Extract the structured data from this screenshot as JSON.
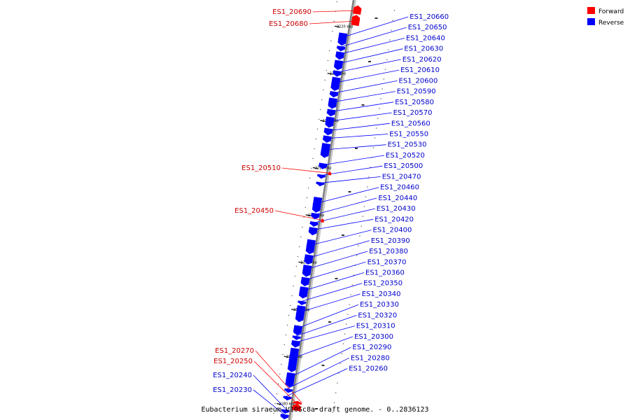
{
  "caption": "Eubacterium siraeum V10Sc8a draft genome. - 0..2836123",
  "legend": [
    {
      "label": "Forward",
      "color": "#ff0000"
    },
    {
      "label": "Reverse",
      "color": "#0000ff"
    }
  ],
  "colors": {
    "forward": "#ff0000",
    "reverse": "#0000ff",
    "forward_text": "#cc0000",
    "reverse_text": "#0000cc",
    "axis": "#808080"
  },
  "scale": {
    "kbp_top": 2223.0,
    "kbp_bottom": 2178.5,
    "unit": "kbp"
  },
  "ticks": [
    {
      "kbp": 2220,
      "label": "2220 kbp"
    },
    {
      "kbp": 2215,
      "label": "2215 kbp"
    },
    {
      "kbp": 2210,
      "label": "2210 kbp"
    },
    {
      "kbp": 2205,
      "label": "2205 kbp"
    },
    {
      "kbp": 2200,
      "label": "2200 kbp"
    },
    {
      "kbp": 2195,
      "label": "2195 kbp"
    },
    {
      "kbp": 2190,
      "label": "2190 kbp"
    },
    {
      "kbp": 2185,
      "label": "2185 kbp"
    },
    {
      "kbp": 2180,
      "label": "2180 kbp"
    }
  ],
  "forward_genes": [
    {
      "name": "ES1_20690",
      "start": 2222.5,
      "end": 2221.6
    },
    {
      "name": "ES1_20680",
      "start": 2221.5,
      "end": 2220.4
    },
    {
      "name": "ES1_20510",
      "start": 2204.9,
      "end": 2204.5
    },
    {
      "name": "ES1_20450",
      "start": 2199.9,
      "end": 2199.5
    },
    {
      "name": "ES1_20270",
      "start": 2180.6,
      "end": 2180.3
    },
    {
      "name": "ES1_20250",
      "start": 2180.3,
      "end": 2179.6
    }
  ],
  "reverse_genes": [
    {
      "name": "ES1_20660",
      "start": 2219.4,
      "end": 2218.1
    },
    {
      "name": "ES1_20650",
      "start": 2218.0,
      "end": 2217.5
    },
    {
      "name": "ES1_20640",
      "start": 2217.4,
      "end": 2216.6
    },
    {
      "name": "ES1_20630",
      "start": 2216.5,
      "end": 2215.5
    },
    {
      "name": "ES1_20620",
      "start": 2215.4,
      "end": 2214.8
    },
    {
      "name": "ES1_20610",
      "start": 2214.7,
      "end": 2213.3
    },
    {
      "name": "ES1_20600",
      "start": 2213.2,
      "end": 2212.6
    },
    {
      "name": "ES1_20590",
      "start": 2212.5,
      "end": 2211.4
    },
    {
      "name": "ES1_20580",
      "start": 2211.3,
      "end": 2210.6
    },
    {
      "name": "ES1_20570",
      "start": 2210.5,
      "end": 2209.4
    },
    {
      "name": "ES1_20560",
      "start": 2209.3,
      "end": 2208.6
    },
    {
      "name": "ES1_20550",
      "start": 2208.5,
      "end": 2207.8
    },
    {
      "name": "ES1_20530",
      "start": 2207.7,
      "end": 2206.2
    },
    {
      "name": "ES1_20520",
      "start": 2205.6,
      "end": 2205.0
    },
    {
      "name": "ES1_20500",
      "start": 2204.4,
      "end": 2204.0
    },
    {
      "name": "ES1_20470",
      "start": 2203.6,
      "end": 2203.2
    },
    {
      "name": "ES1_20460",
      "start": 2202.0,
      "end": 2200.4
    },
    {
      "name": "ES1_20440",
      "start": 2200.3,
      "end": 2199.7
    },
    {
      "name": "ES1_20430",
      "start": 2199.4,
      "end": 2198.9
    },
    {
      "name": "ES1_20420",
      "start": 2198.8,
      "end": 2198.0
    },
    {
      "name": "ES1_20400",
      "start": 2197.5,
      "end": 2196.0
    },
    {
      "name": "ES1_20390",
      "start": 2195.9,
      "end": 2194.9
    },
    {
      "name": "ES1_20380",
      "start": 2194.8,
      "end": 2193.6
    },
    {
      "name": "ES1_20370",
      "start": 2193.5,
      "end": 2192.6
    },
    {
      "name": "ES1_20360",
      "start": 2192.5,
      "end": 2191.3
    },
    {
      "name": "ES1_20350",
      "start": 2191.0,
      "end": 2190.6
    },
    {
      "name": "ES1_20340",
      "start": 2190.5,
      "end": 2188.8
    },
    {
      "name": "ES1_20330",
      "start": 2188.4,
      "end": 2187.4
    },
    {
      "name": "ES1_20320",
      "start": 2187.3,
      "end": 2186.9
    },
    {
      "name": "ES1_20310",
      "start": 2186.8,
      "end": 2186.1
    },
    {
      "name": "ES1_20300",
      "start": 2186.0,
      "end": 2183.5
    },
    {
      "name": "ES1_20290",
      "start": 2183.4,
      "end": 2181.9
    },
    {
      "name": "ES1_20280",
      "start": 2181.7,
      "end": 2181.3
    },
    {
      "name": "ES1_20260",
      "start": 2180.9,
      "end": 2180.5
    },
    {
      "name": "ES1_20240",
      "start": 2179.5,
      "end": 2179.1
    },
    {
      "name": "ES1_20230",
      "start": 2179.0,
      "end": 2178.5
    }
  ]
}
